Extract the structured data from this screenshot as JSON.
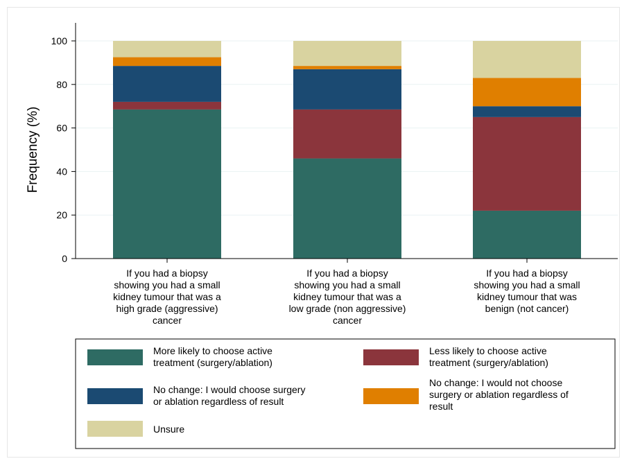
{
  "chart_data": {
    "type": "bar",
    "stacked": true,
    "title": "",
    "xlabel": "",
    "ylabel": "Frequency (%)",
    "ylim": [
      0,
      100
    ],
    "yticks": [
      "0",
      "20",
      "40",
      "60",
      "80",
      "100"
    ],
    "grid": true,
    "legend_position": "bottom",
    "categories": [
      "If you had a biopsy showing you had a small kidney tumour that was a high grade (aggressive) cancer",
      "If you had a biopsy showing you had a small kidney tumour that was a low grade (non aggressive) cancer",
      "If you had a biopsy showing you had a small kidney tumour that was benign (not cancer)"
    ],
    "category_lines": [
      [
        "If you had a biopsy",
        "showing you had a small",
        "kidney tumour that was a",
        "high grade (aggressive)",
        "cancer"
      ],
      [
        "If you had a biopsy",
        "showing you had a small",
        "kidney tumour that was a",
        "low grade (non aggressive)",
        "cancer"
      ],
      [
        "If you had a biopsy",
        "showing you had a small",
        "kidney tumour that was",
        "benign (not cancer)"
      ]
    ],
    "series": [
      {
        "name": "More likely to choose active treatment (surgery/ablation)",
        "legend_lines": [
          "More likely to choose active",
          "treatment (surgery/ablation)"
        ],
        "color": "#2e6b63",
        "values": [
          68.5,
          46.0,
          22.0
        ]
      },
      {
        "name": "Less likely to choose active treatment (surgery/ablation)",
        "legend_lines": [
          "Less likely to choose active",
          "treatment (surgery/ablation)"
        ],
        "color": "#8b353c",
        "values": [
          3.5,
          22.5,
          43.0
        ]
      },
      {
        "name": "No change: I would choose surgery or ablation regardless of result",
        "legend_lines": [
          "No change: I would choose surgery",
          "or ablation regardless of result"
        ],
        "color": "#1b4a72",
        "values": [
          16.5,
          18.5,
          5.0
        ]
      },
      {
        "name": "No change: I would not choose surgery or ablation regardless of result",
        "legend_lines": [
          "No change: I would not choose",
          "surgery or ablation regardless of",
          "result"
        ],
        "color": "#e07f00",
        "values": [
          4.0,
          1.5,
          13.0
        ]
      },
      {
        "name": "Unsure",
        "legend_lines": [
          "Unsure"
        ],
        "color": "#d9d3a0",
        "values": [
          7.5,
          11.5,
          17.0
        ]
      }
    ]
  }
}
